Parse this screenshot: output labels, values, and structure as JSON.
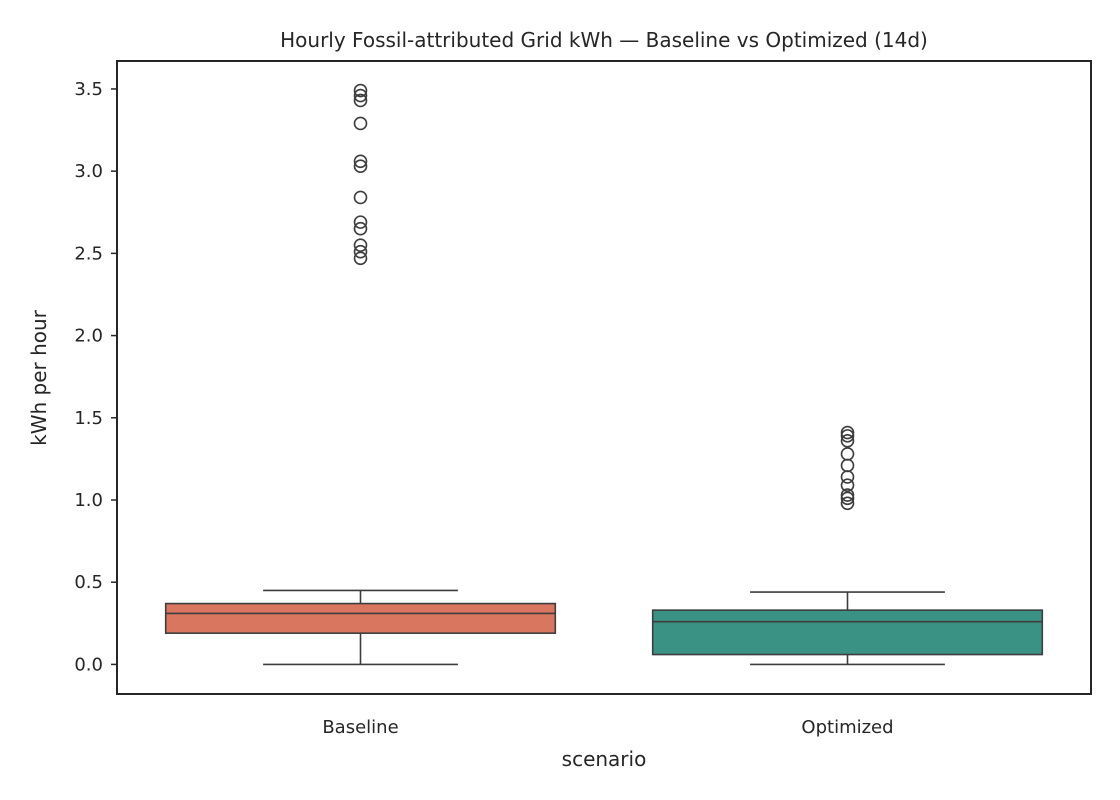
{
  "chart_data": {
    "type": "box",
    "title": "Hourly Fossil-attributed Grid kWh — Baseline vs Optimized (14d)",
    "xlabel": "scenario",
    "ylabel": "kWh per hour",
    "ylim": [
      -0.18,
      3.67
    ],
    "yticks": [
      "0.0",
      "0.5",
      "1.0",
      "1.5",
      "2.0",
      "2.5",
      "3.0",
      "3.5"
    ],
    "grid": false,
    "categories": [
      "Baseline",
      "Optimized"
    ],
    "colors": [
      "#d9765f",
      "#3a9285"
    ],
    "edge_color": "#3d3d3d",
    "boxes": [
      {
        "category": "Baseline",
        "whisker_low": 0.0,
        "q1": 0.19,
        "median": 0.31,
        "q3": 0.37,
        "whisker_high": 0.45,
        "outliers": [
          2.47,
          2.51,
          2.55,
          2.65,
          2.69,
          2.84,
          3.03,
          3.06,
          3.29,
          3.43,
          3.46,
          3.49
        ]
      },
      {
        "category": "Optimized",
        "whisker_low": 0.0,
        "q1": 0.06,
        "median": 0.26,
        "q3": 0.33,
        "whisker_high": 0.44,
        "outliers": [
          0.98,
          1.01,
          1.03,
          1.09,
          1.14,
          1.21,
          1.28,
          1.36,
          1.39,
          1.41
        ]
      }
    ]
  }
}
